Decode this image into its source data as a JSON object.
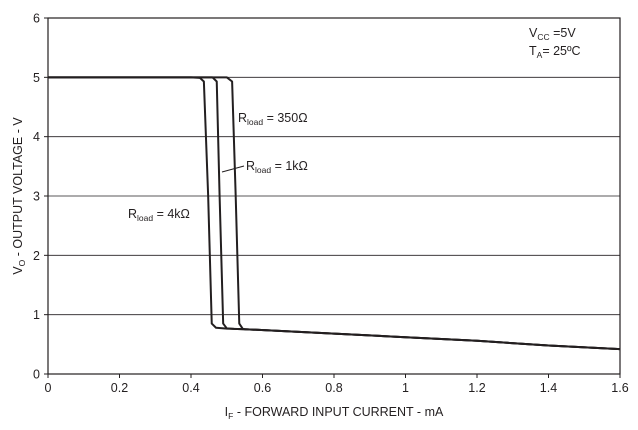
{
  "chart_data": {
    "type": "line",
    "xlabel": {
      "main": "I",
      "sub": "F",
      "rest": " - FORWARD INPUT CURRENT - mA"
    },
    "ylabel": {
      "main": "V",
      "sub": "O",
      "rest": " - OUTPUT VOLTAGE - V"
    },
    "xlim": [
      0,
      1.6
    ],
    "ylim": [
      0,
      6
    ],
    "x_ticks": [
      "0",
      "0.2",
      "0.4",
      "0.6",
      "0.8",
      "1",
      "1.2",
      "1.4",
      "1.6"
    ],
    "y_ticks": [
      "0",
      "1",
      "2",
      "3",
      "4",
      "5",
      "6"
    ],
    "grid": {
      "horizontal": true,
      "vertical": false
    },
    "conditions": [
      {
        "main": "V",
        "sub": "CC",
        "rest": " =5V"
      },
      {
        "main": "T",
        "sub": "A",
        "rest": "= 25ºC"
      }
    ],
    "series": [
      {
        "name": {
          "main": "R",
          "sub": "load",
          "rest": " = 4kΩ"
        },
        "x": [
          0,
          0.4,
          0.425,
          0.436,
          0.448,
          0.458,
          0.47,
          0.5,
          0.55,
          0.8,
          1.0,
          1.2,
          1.4,
          1.6
        ],
        "y": [
          5.0,
          5.0,
          4.99,
          4.93,
          3.0,
          0.85,
          0.78,
          0.765,
          0.755,
          0.68,
          0.62,
          0.56,
          0.48,
          0.42
        ]
      },
      {
        "name": {
          "main": "R",
          "sub": "load",
          "rest": " = 1kΩ"
        },
        "x": [
          0,
          0.4,
          0.46,
          0.472,
          0.48,
          0.49,
          0.5,
          0.52,
          0.55,
          0.8,
          1.0,
          1.2,
          1.4,
          1.6
        ],
        "y": [
          5.0,
          5.0,
          5.0,
          4.93,
          3.0,
          0.85,
          0.77,
          0.76,
          0.755,
          0.68,
          0.62,
          0.56,
          0.48,
          0.42
        ]
      },
      {
        "name": {
          "main": "R",
          "sub": "load",
          "rest": " = 350Ω"
        },
        "x": [
          0,
          0.4,
          0.5,
          0.515,
          0.525,
          0.535,
          0.545,
          0.55,
          0.8,
          1.0,
          1.2,
          1.4,
          1.6
        ],
        "y": [
          5.0,
          5.0,
          5.0,
          4.93,
          3.0,
          0.85,
          0.76,
          0.755,
          0.68,
          0.62,
          0.56,
          0.48,
          0.42
        ]
      }
    ]
  }
}
